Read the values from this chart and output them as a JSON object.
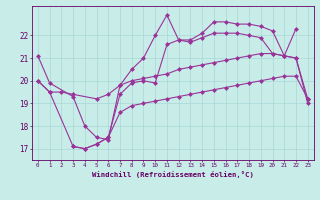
{
  "xlabel": "Windchill (Refroidissement éolien,°C)",
  "background_color": "#c8ece8",
  "line_color": "#993399",
  "grid_color": "#a8d8d8",
  "axis_color": "#660066",
  "text_color": "#660066",
  "xlim": [
    -0.5,
    23.5
  ],
  "ylim": [
    16.5,
    23.3
  ],
  "xticks": [
    0,
    1,
    2,
    3,
    4,
    5,
    6,
    7,
    8,
    9,
    10,
    11,
    12,
    13,
    14,
    15,
    16,
    17,
    18,
    19,
    20,
    21,
    22,
    23
  ],
  "yticks": [
    17,
    18,
    19,
    20,
    21,
    22
  ],
  "line1_x": [
    0,
    1,
    3,
    4,
    5,
    6,
    7,
    8,
    9,
    10,
    11,
    12,
    13,
    14,
    15,
    16,
    17,
    18,
    19,
    20,
    21,
    22
  ],
  "line1_y": [
    21.1,
    19.9,
    19.3,
    18.0,
    17.5,
    17.4,
    19.8,
    20.5,
    21.0,
    22.0,
    22.9,
    21.8,
    21.8,
    22.1,
    22.6,
    22.6,
    22.5,
    22.5,
    22.4,
    22.2,
    21.1,
    22.3
  ],
  "line2_x": [
    0,
    1,
    3,
    4,
    5,
    6,
    7,
    8,
    9,
    10,
    11,
    12,
    13,
    14,
    15,
    16,
    17,
    18,
    19,
    20,
    21,
    22,
    23
  ],
  "line2_y": [
    20.0,
    19.5,
    17.1,
    17.0,
    17.2,
    17.5,
    19.4,
    19.9,
    20.0,
    19.9,
    21.6,
    21.8,
    21.7,
    21.9,
    22.1,
    22.1,
    22.1,
    22.0,
    21.9,
    21.2,
    21.1,
    21.0,
    19.0
  ],
  "line3_x": [
    0,
    1,
    2,
    3,
    5,
    6,
    7,
    8,
    9,
    10,
    11,
    12,
    13,
    14,
    15,
    16,
    17,
    18,
    19,
    20,
    21,
    22,
    23
  ],
  "line3_y": [
    20.0,
    19.5,
    19.5,
    19.4,
    19.2,
    19.4,
    19.8,
    20.0,
    20.1,
    20.2,
    20.3,
    20.5,
    20.6,
    20.7,
    20.8,
    20.9,
    21.0,
    21.1,
    21.2,
    21.2,
    21.1,
    21.0,
    19.2
  ],
  "line4_x": [
    3,
    4,
    5,
    6,
    7,
    8,
    9,
    10,
    11,
    12,
    13,
    14,
    15,
    16,
    17,
    18,
    19,
    20,
    21,
    22,
    23
  ],
  "line4_y": [
    17.1,
    17.0,
    17.2,
    17.5,
    18.6,
    18.9,
    19.0,
    19.1,
    19.2,
    19.3,
    19.4,
    19.5,
    19.6,
    19.7,
    19.8,
    19.9,
    20.0,
    20.1,
    20.2,
    20.2,
    19.2
  ],
  "marker": "D",
  "markersize": 2.5,
  "linewidth": 0.8
}
